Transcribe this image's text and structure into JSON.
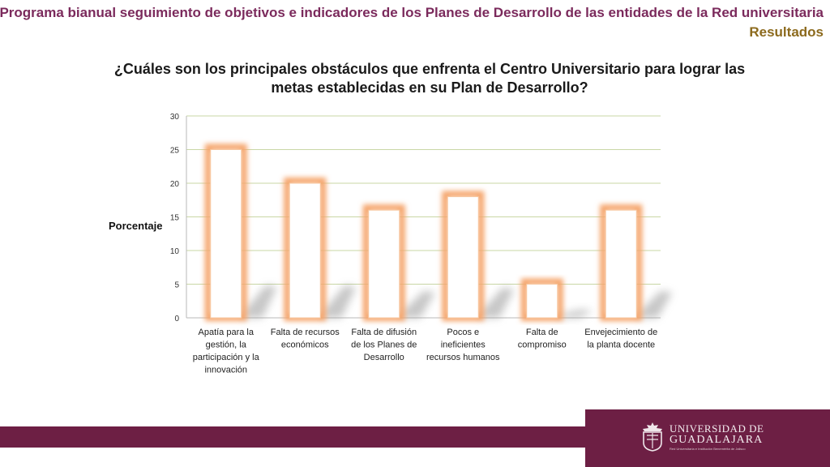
{
  "header": {
    "title": "Programa bianual seguimiento de objetivos e indicadores de los Planes de Desarrollo de las entidades de la Red universitaria",
    "subtitle": "Resultados"
  },
  "colors": {
    "title": "#7b2a5c",
    "subtitle": "#8c6a1d",
    "band": "#6d1f44",
    "bar_glow": "#f5a46a",
    "grid": "#c9d7a6"
  },
  "logo": {
    "icon": "university-crest-icon",
    "name_line1": "UNIVERSIDAD DE",
    "name_line2": "GUADALAJARA",
    "tagline": "Red Universitaria e Institución Benemérita de Jalisco"
  },
  "chart_data": {
    "type": "bar",
    "title": [
      "¿Cuáles son los principales obstáculos que enfrenta el Centro Universitario para lograr las",
      "metas establecidas en su Plan de Desarrollo?"
    ],
    "ylabel": "Porcentaje",
    "xlabel": "",
    "ylim": [
      0,
      30
    ],
    "yticks": [
      0,
      5,
      10,
      15,
      20,
      25,
      30
    ],
    "grid": true,
    "categories": [
      [
        "Apatía para la",
        "gestión, la",
        "participación y la",
        "innovación"
      ],
      [
        "Falta de recursos",
        "económicos"
      ],
      [
        "Falta de difusión",
        "de los Planes de",
        "Desarrollo"
      ],
      [
        "Pocos e",
        "ineficientes",
        "recursos humanos"
      ],
      [
        "Falta de",
        "compromiso"
      ],
      [
        "Envejecimiento de",
        "la planta docente"
      ]
    ],
    "values": [
      25,
      20,
      16,
      18,
      5,
      16
    ]
  }
}
